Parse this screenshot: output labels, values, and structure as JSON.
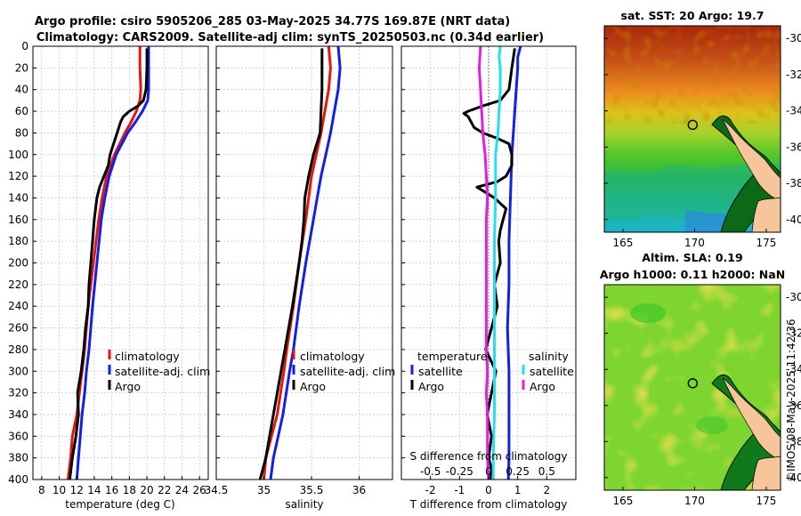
{
  "header": {
    "line1": "Argo profile: csiro 5905206_285 03-May-2025 34.77S 169.87E (NRT data)",
    "line2": "Climatology: CARS2009. Satellite-adj clim: synTS_20250503.nc (0.34d earlier)"
  },
  "watermark": "©IMOS 08-May-2025 11:42:36",
  "colors": {
    "climatology": "#e8150f",
    "satellite": "#1020e6",
    "argo": "#000000",
    "salinity_sat": "#22e0f0",
    "salinity_argo": "#e01fe0"
  },
  "depth_ticks": [
    0,
    20,
    40,
    60,
    80,
    100,
    120,
    140,
    160,
    180,
    200,
    220,
    240,
    260,
    280,
    300,
    320,
    340,
    360,
    380,
    400
  ],
  "chart_data": [
    {
      "type": "line",
      "id": "temperature",
      "xlabel": "temperature (deg C)",
      "ylabel": "depth",
      "xlim": [
        7,
        27
      ],
      "ylim": [
        400,
        0
      ],
      "x_ticks": [
        8,
        10,
        12,
        14,
        16,
        18,
        20,
        22,
        24,
        26
      ],
      "grid": true,
      "legend": [
        "climatology",
        "satellite-adj. clim",
        "Argo"
      ],
      "series": [
        {
          "name": "climatology",
          "depth": [
            0,
            20,
            40,
            50,
            60,
            70,
            80,
            100,
            120,
            140,
            160,
            200,
            240,
            280,
            300,
            320,
            340,
            360,
            380,
            400
          ],
          "values": [
            19.2,
            19.2,
            19.3,
            19.2,
            18.8,
            18.2,
            17.5,
            16.3,
            15.4,
            14.9,
            14.5,
            13.9,
            13.3,
            12.9,
            12.6,
            12.3,
            12.0,
            11.5,
            11.3,
            11.0
          ]
        },
        {
          "name": "satellite-adj. clim",
          "depth": [
            0,
            20,
            40,
            50,
            60,
            70,
            80,
            100,
            120,
            140,
            160,
            200,
            240,
            280,
            300,
            320,
            340,
            360,
            380,
            400
          ],
          "values": [
            20.2,
            20.2,
            20.2,
            20.1,
            19.5,
            18.7,
            17.8,
            16.5,
            15.7,
            15.2,
            14.8,
            14.3,
            13.8,
            13.4,
            13.1,
            12.9,
            12.6,
            12.4,
            12.2,
            12.0
          ]
        },
        {
          "name": "Argo",
          "depth": [
            2,
            20,
            40,
            50,
            55,
            60,
            65,
            70,
            80,
            90,
            100,
            110,
            120,
            130,
            140,
            160,
            180,
            200,
            220,
            240,
            260,
            280,
            300,
            310,
            320,
            340,
            360,
            380,
            400
          ],
          "values": [
            20.0,
            20.0,
            19.9,
            19.6,
            19.0,
            18.0,
            17.3,
            17.0,
            16.6,
            16.2,
            15.8,
            15.6,
            15.1,
            14.6,
            14.3,
            14.0,
            13.8,
            13.6,
            13.4,
            13.3,
            13.0,
            12.8,
            12.5,
            12.3,
            12.1,
            12.2,
            11.9,
            11.5,
            11.2
          ]
        }
      ]
    },
    {
      "type": "line",
      "id": "salinity",
      "xlabel": "salinity",
      "ylabel": "depth",
      "xlim": [
        34.5,
        36.35
      ],
      "ylim": [
        400,
        0
      ],
      "x_ticks": [
        34.5,
        35,
        35.5,
        36
      ],
      "grid": true,
      "legend": [
        "climatology",
        "satellite-adj. clim",
        "Argo"
      ],
      "series": [
        {
          "name": "climatology",
          "depth": [
            0,
            20,
            40,
            60,
            80,
            100,
            120,
            140,
            160,
            200,
            240,
            280,
            300,
            340,
            360,
            380,
            400
          ],
          "values": [
            35.68,
            35.7,
            35.68,
            35.64,
            35.6,
            35.55,
            35.5,
            35.47,
            35.44,
            35.37,
            35.31,
            35.24,
            35.21,
            35.14,
            35.08,
            35.02,
            35.0
          ]
        },
        {
          "name": "satellite-adj. clim",
          "depth": [
            0,
            20,
            40,
            60,
            80,
            100,
            120,
            140,
            160,
            200,
            240,
            280,
            300,
            340,
            360,
            380,
            400
          ],
          "values": [
            35.78,
            35.8,
            35.78,
            35.74,
            35.7,
            35.65,
            35.6,
            35.56,
            35.52,
            35.44,
            35.37,
            35.31,
            35.27,
            35.2,
            35.15,
            35.1,
            35.07
          ]
        },
        {
          "name": "Argo",
          "depth": [
            2,
            20,
            40,
            60,
            80,
            100,
            120,
            140,
            160,
            180,
            200,
            240,
            280,
            300,
            320,
            340,
            360,
            380,
            400
          ],
          "values": [
            35.61,
            35.61,
            35.61,
            35.6,
            35.59,
            35.52,
            35.47,
            35.43,
            35.42,
            35.4,
            35.37,
            35.3,
            35.22,
            35.18,
            35.14,
            35.1,
            35.06,
            35.02,
            34.96
          ]
        }
      ]
    },
    {
      "type": "line",
      "id": "difference",
      "xlabel": "T difference from climatology",
      "top_xlabel": "S difference from climatology",
      "xlim": [
        -3,
        3
      ],
      "ylim": [
        400,
        0
      ],
      "x_ticks": [
        -2,
        -1,
        0,
        1,
        2
      ],
      "top_ticks": [
        "-0.5",
        "-0.25",
        "0",
        "0.25",
        "0.5"
      ],
      "grid": true,
      "legend_temperature_title": "temperature",
      "legend_salinity_title": "salinity",
      "legend": [
        "satellite",
        "Argo",
        "satellite",
        "Argo"
      ],
      "series": [
        {
          "name": "T satellite",
          "depth": [
            0,
            10,
            20,
            40,
            60,
            80,
            100,
            140,
            180,
            220,
            260,
            300,
            340,
            380,
            400
          ],
          "values": [
            1.1,
            1.0,
            1.0,
            0.95,
            0.9,
            0.85,
            0.8,
            0.75,
            0.7,
            0.7,
            0.65,
            0.7,
            0.7,
            0.7,
            0.68
          ]
        },
        {
          "name": "T Argo",
          "depth": [
            2,
            20,
            40,
            50,
            55,
            60,
            62,
            65,
            70,
            75,
            80,
            85,
            90,
            100,
            110,
            120,
            125,
            130,
            140,
            150,
            160,
            170,
            180,
            200,
            220,
            240,
            260,
            280,
            300,
            320,
            340,
            360,
            380,
            390,
            400
          ],
          "values": [
            0.9,
            0.8,
            0.7,
            0.4,
            -0.2,
            -0.7,
            -0.85,
            -0.7,
            -0.6,
            -0.5,
            -0.2,
            0.3,
            0.7,
            0.8,
            0.8,
            0.6,
            0.3,
            -0.4,
            0.2,
            0.6,
            0.5,
            0.4,
            0.35,
            0.4,
            0.2,
            0.3,
            0.1,
            -0.1,
            0.25,
            0.1,
            -0.05,
            0.1,
            0.0,
            0.1,
            0.05
          ]
        },
        {
          "name": "S satellite",
          "depth": [
            0,
            10,
            20,
            40,
            60,
            80,
            100,
            140,
            180,
            220,
            260,
            300,
            340,
            380,
            400
          ],
          "values": [
            0.1,
            0.09,
            0.1,
            0.1,
            0.09,
            0.08,
            0.06,
            0.06,
            0.05,
            0.05,
            0.05,
            0.05,
            0.05,
            0.04,
            0.04
          ]
        },
        {
          "name": "S Argo",
          "depth": [
            0,
            20,
            40,
            60,
            80,
            100,
            120,
            140,
            160,
            200,
            240,
            280,
            300,
            320,
            340,
            360,
            380,
            400
          ],
          "values": [
            -0.07,
            -0.08,
            -0.07,
            -0.06,
            -0.05,
            -0.03,
            -0.02,
            -0.01,
            -0.02,
            -0.02,
            -0.02,
            -0.02,
            -0.01,
            -0.02,
            -0.01,
            -0.01,
            -0.01,
            0.0
          ]
        }
      ]
    },
    {
      "type": "heatmap",
      "id": "sst_map",
      "title": "sat. SST: 20 Argo: 19.7",
      "x_ticks": [
        165,
        170,
        175
      ],
      "y_ticks": [
        -30,
        -32,
        -34,
        -36,
        -38,
        -40
      ],
      "xlim": [
        163.7,
        176
      ],
      "ylim": [
        -40.7,
        -29.3
      ],
      "argo_position": [
        169.87,
        -34.77
      ]
    },
    {
      "type": "heatmap",
      "id": "sla_map",
      "title_line1": "Altim. SLA: 0.19",
      "title_line2": "Argo h1000: 0.11 h2000: NaN",
      "x_ticks": [
        165,
        170,
        175
      ],
      "y_ticks": [
        -30,
        -32,
        -34,
        -36,
        -38,
        -40
      ],
      "xlim": [
        163.7,
        176
      ],
      "ylim": [
        -40.7,
        -29.3
      ],
      "argo_position": [
        169.87,
        -34.77
      ]
    }
  ]
}
